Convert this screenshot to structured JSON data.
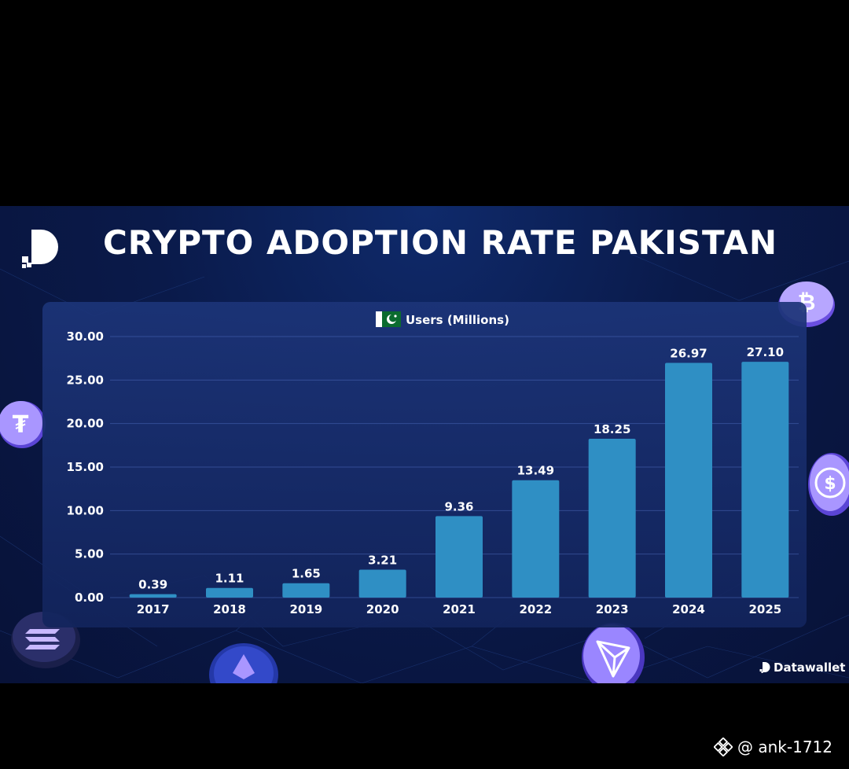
{
  "header": {
    "title": "CRYPTO ADOPTION RATE PAKISTAN"
  },
  "brand": {
    "name": "Datawallet"
  },
  "watermark": {
    "handle": "@ ank-1712"
  },
  "colors": {
    "bar": "#2f8fc4",
    "background": "#0a1a4a",
    "panel": "#1a3274"
  },
  "chart_data": {
    "type": "bar",
    "legend": "Users (Millions)",
    "categories": [
      "2017",
      "2018",
      "2019",
      "2020",
      "2021",
      "2022",
      "2023",
      "2024",
      "2025"
    ],
    "values": [
      0.39,
      1.11,
      1.65,
      3.21,
      9.36,
      13.49,
      18.25,
      26.97,
      27.1
    ],
    "value_labels": [
      "0.39",
      "1.11",
      "1.65",
      "3.21",
      "9.36",
      "13.49",
      "18.25",
      "26.97",
      "27.10"
    ],
    "y_ticks": [
      "0.00",
      "5.00",
      "10.00",
      "15.00",
      "20.00",
      "25.00",
      "30.00"
    ],
    "ylim": [
      0,
      30
    ],
    "grid": true,
    "legend_position": "top-center"
  },
  "icons": [
    "logo-icon",
    "pakistan-flag-icon",
    "bitcoin-coin-icon",
    "tether-coin-icon",
    "usdc-coin-icon",
    "solana-coin-icon",
    "ethereum-coin-icon",
    "tron-coin-icon",
    "binance-icon"
  ]
}
